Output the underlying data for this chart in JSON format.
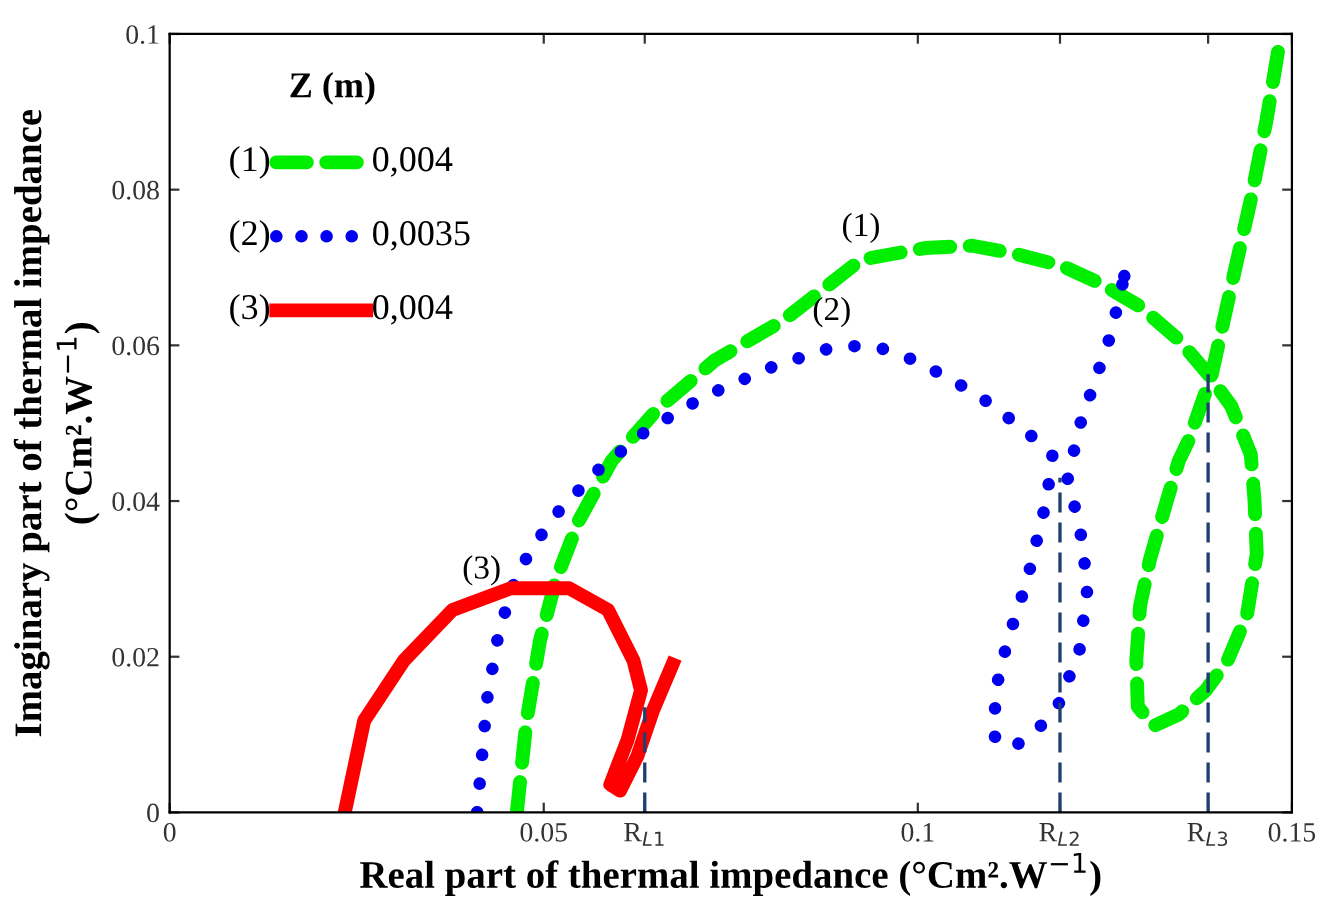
{
  "chart_data": {
    "type": "line",
    "xlabel": "Real part of thermal impedance (°Cm².W$^{−1}$)",
    "ylabel": "Imaginary part of thermal impedance\n(°Cm².W$^{−1}$)",
    "legend_title": "Z (m)",
    "legend": "top left",
    "grid": false,
    "xlim": [
      0,
      0.15
    ],
    "ylim": [
      0,
      0.1
    ],
    "xticks": [
      0,
      0.05,
      {
        "value": 0.0635,
        "label": "R$_{L1}$"
      },
      0.1,
      {
        "value": 0.119,
        "label": "R$_{L2}$"
      },
      {
        "value": 0.1388,
        "label": "R$_{L3}$"
      },
      0.15
    ],
    "yticks": [
      0,
      0.02,
      0.04,
      0.06,
      0.08,
      0.1
    ],
    "series": [
      {
        "name": "0,004",
        "color": "#00ee00",
        "line_style": "dashed",
        "x": [
          0.0464,
          0.0477,
          0.0495,
          0.0516,
          0.0547,
          0.0591,
          0.0651,
          0.0729,
          0.082,
          0.0924,
          0.101,
          0.1073,
          0.1133,
          0.1193,
          0.1245,
          0.1297,
          0.1349,
          0.1388,
          0.1419,
          0.1445,
          0.145,
          0.1453,
          0.144,
          0.1414,
          0.1385,
          0.1349,
          0.1315,
          0.1294,
          0.1292,
          0.1297,
          0.131,
          0.1333,
          0.1349,
          0.1362,
          0.1393,
          0.1419,
          0.1445,
          0.1466,
          0.1484
        ],
        "values": [
          0,
          0.0118,
          0.0221,
          0.0298,
          0.0375,
          0.0452,
          0.0517,
          0.0581,
          0.0632,
          0.071,
          0.0725,
          0.0728,
          0.0717,
          0.0702,
          0.0679,
          0.065,
          0.0607,
          0.0563,
          0.0522,
          0.046,
          0.0401,
          0.0332,
          0.0254,
          0.0195,
          0.0157,
          0.0126,
          0.0111,
          0.0136,
          0.0195,
          0.0265,
          0.0324,
          0.0401,
          0.0452,
          0.0478,
          0.0563,
          0.0676,
          0.0787,
          0.0889,
          0.0992
        ]
      },
      {
        "name": "0,0035",
        "color": "#0000ee",
        "line_style": "dotted",
        "x": [
          0.0411,
          0.0417,
          0.0424,
          0.0438,
          0.0456,
          0.0482,
          0.0521,
          0.0573,
          0.0638,
          0.0716,
          0.0807,
          0.0891,
          0.0943,
          0.0995,
          0.1047,
          0.1089,
          0.1125,
          0.1159,
          0.118,
          0.1172,
          0.1146,
          0.112,
          0.1104,
          0.1102,
          0.1125,
          0.1159,
          0.1188,
          0.1216,
          0.1227,
          0.1216,
          0.12,
          0.1216,
          0.1237,
          0.1258,
          0.1276
        ],
        "values": [
          0,
          0.0067,
          0.0144,
          0.0221,
          0.0285,
          0.0337,
          0.0388,
          0.044,
          0.0491,
          0.0535,
          0.0573,
          0.0599,
          0.0599,
          0.0581,
          0.0555,
          0.053,
          0.0504,
          0.0478,
          0.0458,
          0.0401,
          0.0298,
          0.0221,
          0.0157,
          0.0098,
          0.0082,
          0.0105,
          0.0139,
          0.0208,
          0.029,
          0.037,
          0.0427,
          0.0496,
          0.0555,
          0.0614,
          0.0689
        ]
      },
      {
        "name": "0,004",
        "color": "#ff0000",
        "line_style": "solid",
        "x": [
          0.0234,
          0.026,
          0.0313,
          0.0378,
          0.0456,
          0.0534,
          0.0586,
          0.062,
          0.063,
          0.0612,
          0.0589,
          0.0602,
          0.0625,
          0.0646,
          0.0672
        ],
        "values": [
          0,
          0.0118,
          0.0195,
          0.026,
          0.0288,
          0.0288,
          0.026,
          0.0195,
          0.0157,
          0.0093,
          0.0036,
          0.0028,
          0.0072,
          0.0131,
          0.019
        ]
      },
      {
        "color": "#1f3f6f",
        "line_style": "dashed",
        "x": [
          0.0635,
          0.0635
        ],
        "values": [
          0,
          0.0135
        ]
      },
      {
        "color": "#1f3f6f",
        "line_style": "dashed",
        "x": [
          0.119,
          0.119
        ],
        "values": [
          0,
          0.043
        ]
      },
      {
        "color": "#1f3f6f",
        "line_style": "dashed",
        "x": [
          0.1388,
          0.1388
        ],
        "values": [
          0,
          0.0563
        ]
      }
    ],
    "annotations": [
      {
        "text": "(1)",
        "x": 0.0924,
        "y": 0.071
      },
      {
        "text": "(2)",
        "x": 0.0885,
        "y": 0.0602
      },
      {
        "text": "(3)",
        "x": 0.0417,
        "y": 0.027
      }
    ]
  }
}
